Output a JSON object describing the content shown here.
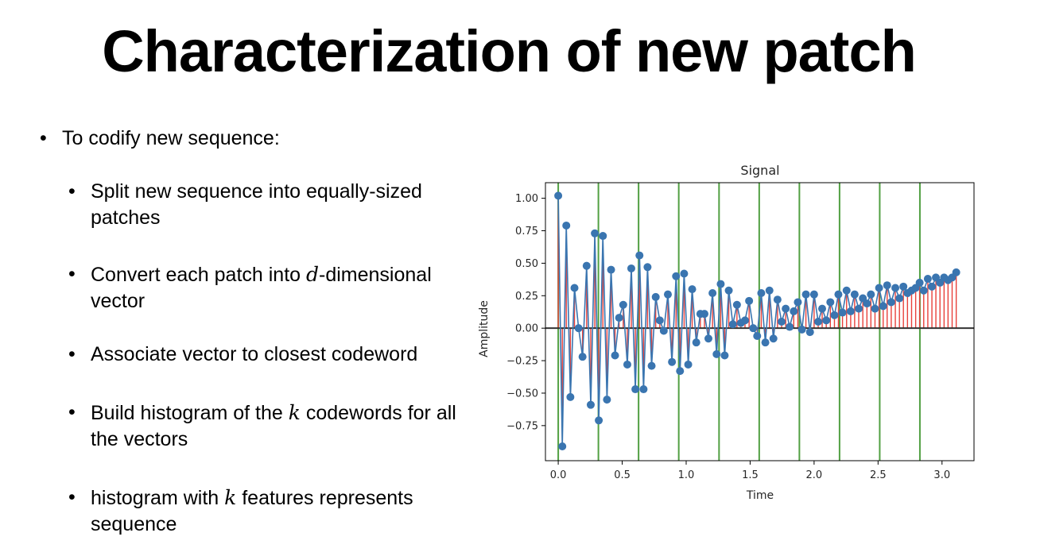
{
  "slide": {
    "title": "Characterization of new patch",
    "main_bullet": "To codify new sequence:",
    "sub_bullets": [
      {
        "before": "Split new sequence into equally-sized patches",
        "math": "",
        "after": ""
      },
      {
        "before": "Convert each patch into ",
        "math": "d",
        "after": "-dimensional vector"
      },
      {
        "before": "Associate vector to closest codeword",
        "math": "",
        "after": ""
      },
      {
        "before": "Build histogram of the ",
        "math": "k",
        "after": " codewords for all the vectors"
      },
      {
        "before": "histogram with ",
        "math": "k",
        "after": " features represents sequence"
      }
    ]
  },
  "chart_data": {
    "type": "stem",
    "title": "Signal",
    "xlabel": "Time",
    "ylabel": "Amplitude",
    "xlim": [
      -0.1,
      3.25
    ],
    "ylim": [
      -1.02,
      1.12
    ],
    "xticks": [
      0.0,
      0.5,
      1.0,
      1.5,
      2.0,
      2.5,
      3.0
    ],
    "xtick_labels": [
      "0.0",
      "0.5",
      "1.0",
      "1.5",
      "2.0",
      "2.5",
      "3.0"
    ],
    "yticks": [
      1.0,
      0.75,
      0.5,
      0.25,
      0.0,
      -0.25,
      -0.5,
      -0.75
    ],
    "ytick_labels": [
      "1.00",
      "0.75",
      "0.50",
      "0.25",
      "0.00",
      "−0.25",
      "−0.50",
      "−0.75"
    ],
    "patch_boundaries": [
      0.0,
      0.314,
      0.628,
      0.942,
      1.257,
      1.571,
      1.885,
      2.199,
      2.513,
      2.827
    ],
    "colors": {
      "points": "#3a75b0",
      "stems": "#e8413b",
      "boundaries": "#52a043",
      "baseline": "#333333"
    },
    "x": [
      0.0,
      0.032,
      0.063,
      0.095,
      0.127,
      0.159,
      0.19,
      0.222,
      0.254,
      0.286,
      0.317,
      0.349,
      0.381,
      0.413,
      0.444,
      0.476,
      0.508,
      0.54,
      0.571,
      0.603,
      0.635,
      0.667,
      0.698,
      0.73,
      0.762,
      0.794,
      0.825,
      0.857,
      0.889,
      0.921,
      0.952,
      0.984,
      1.016,
      1.047,
      1.079,
      1.111,
      1.143,
      1.174,
      1.206,
      1.238,
      1.27,
      1.301,
      1.333,
      1.365,
      1.397,
      1.428,
      1.46,
      1.492,
      1.524,
      1.555,
      1.587,
      1.619,
      1.651,
      1.682,
      1.714,
      1.746,
      1.778,
      1.809,
      1.841,
      1.873,
      1.905,
      1.936,
      1.968,
      2.0,
      2.032,
      2.063,
      2.095,
      2.127,
      2.159,
      2.19,
      2.222,
      2.254,
      2.286,
      2.317,
      2.349,
      2.381,
      2.413,
      2.444,
      2.476,
      2.508,
      2.54,
      2.571,
      2.603,
      2.635,
      2.667,
      2.698,
      2.73,
      2.762,
      2.794,
      2.825,
      2.857,
      2.889,
      2.921,
      2.952,
      2.984,
      3.016,
      3.047,
      3.079,
      3.111
    ],
    "values": [
      1.02,
      -0.91,
      0.79,
      -0.53,
      0.31,
      0.0,
      -0.22,
      0.48,
      -0.59,
      0.73,
      -0.71,
      0.71,
      -0.55,
      0.45,
      -0.21,
      0.08,
      0.18,
      -0.28,
      0.46,
      -0.47,
      0.56,
      -0.47,
      0.47,
      -0.29,
      0.24,
      0.06,
      -0.02,
      0.26,
      -0.26,
      0.4,
      -0.33,
      0.42,
      -0.28,
      0.3,
      -0.11,
      0.11,
      0.11,
      -0.08,
      0.27,
      -0.2,
      0.34,
      -0.21,
      0.29,
      0.03,
      0.18,
      0.04,
      0.06,
      0.21,
      0.0,
      -0.06,
      0.27,
      -0.11,
      0.29,
      -0.08,
      0.22,
      0.05,
      0.15,
      0.01,
      0.13,
      0.2,
      -0.01,
      0.26,
      -0.03,
      0.26,
      0.05,
      0.15,
      0.06,
      0.2,
      0.1,
      0.26,
      0.12,
      0.29,
      0.13,
      0.26,
      0.15,
      0.23,
      0.19,
      0.26,
      0.15,
      0.31,
      0.17,
      0.33,
      0.2,
      0.31,
      0.23,
      0.32,
      0.27,
      0.29,
      0.31,
      0.35,
      0.29,
      0.38,
      0.32,
      0.39,
      0.35,
      0.39,
      0.37,
      0.39,
      0.43
    ]
  }
}
